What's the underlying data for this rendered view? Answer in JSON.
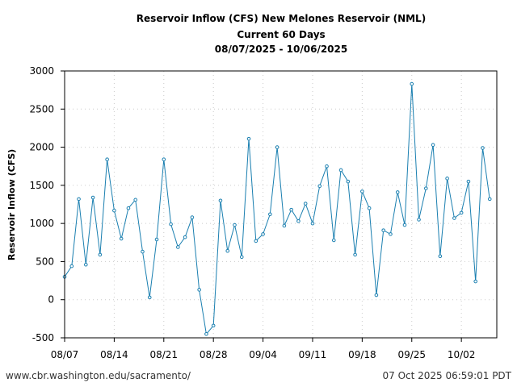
{
  "chart_data": {
    "type": "line",
    "title_lines": [
      "Reservoir Inflow (CFS) New Melones Reservoir (NML)",
      "Current 60 Days",
      "08/07/2025 - 10/06/2025"
    ],
    "xlabel": "",
    "ylabel": "Reservoir Inflow (CFS)",
    "x_range_days": [
      0,
      61
    ],
    "ylim": [
      -500,
      3000
    ],
    "y_ticks": [
      -500,
      0,
      500,
      1000,
      1500,
      2000,
      2500,
      3000
    ],
    "x_ticks": [
      {
        "day": 0,
        "label": "08/07"
      },
      {
        "day": 7,
        "label": "08/14"
      },
      {
        "day": 14,
        "label": "08/21"
      },
      {
        "day": 21,
        "label": "08/28"
      },
      {
        "day": 28,
        "label": "09/04"
      },
      {
        "day": 35,
        "label": "09/11"
      },
      {
        "day": 42,
        "label": "09/18"
      },
      {
        "day": 49,
        "label": "09/25"
      },
      {
        "day": 56,
        "label": "10/02"
      }
    ],
    "grid": true,
    "series": [
      {
        "name": "Reservoir Inflow (CFS)",
        "color": "#1a7fb0",
        "x": [
          0,
          1,
          2,
          3,
          4,
          5,
          6,
          7,
          8,
          9,
          10,
          11,
          12,
          13,
          14,
          15,
          16,
          17,
          18,
          19,
          20,
          21,
          22,
          23,
          24,
          25,
          26,
          27,
          28,
          29,
          30,
          31,
          32,
          33,
          34,
          35,
          36,
          37,
          38,
          39,
          40,
          41,
          42,
          43,
          44,
          45,
          46,
          47,
          48,
          49,
          50,
          51,
          52,
          53,
          54,
          55,
          56,
          57,
          58,
          59,
          60
        ],
        "values": [
          300,
          440,
          1320,
          460,
          1340,
          590,
          1840,
          1170,
          800,
          1200,
          1310,
          630,
          30,
          790,
          1840,
          990,
          690,
          820,
          1080,
          130,
          -450,
          -340,
          1300,
          640,
          980,
          560,
          2110,
          770,
          860,
          1120,
          2000,
          970,
          1180,
          1030,
          1260,
          1000,
          1490,
          1750,
          780,
          1700,
          1550,
          590,
          1420,
          1200,
          60,
          910,
          860,
          1410,
          980,
          2830,
          1050,
          1460,
          2030,
          570,
          1590,
          1070,
          1140,
          1550,
          240,
          1990,
          1320
        ]
      }
    ]
  },
  "footer": {
    "source": "www.cbr.washington.edu/sacramento/",
    "timestamp": "07 Oct 2025 06:59:01 PDT"
  }
}
